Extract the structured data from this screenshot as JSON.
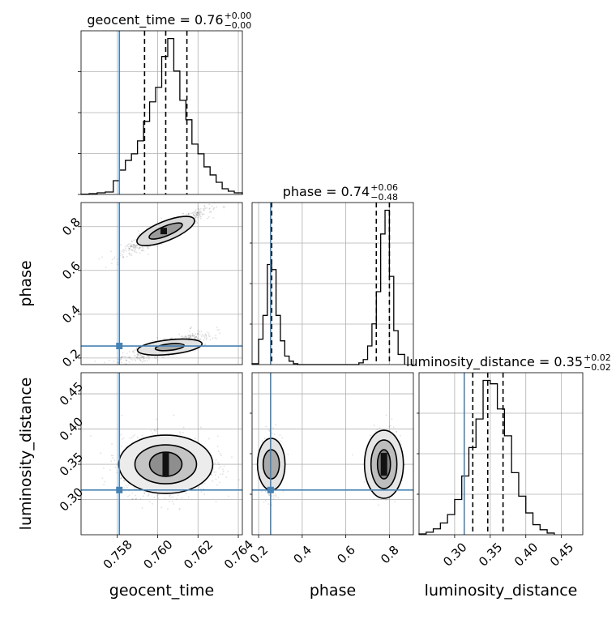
{
  "colors": {
    "truth": "#4682b4",
    "hist": "#000000",
    "grid": "#b0b0b0"
  },
  "chart_data": {
    "type": "corner",
    "parameters": [
      "geocent_time",
      "phase",
      "luminosity_distance"
    ],
    "axis_labels": {
      "x": [
        "geocent_time",
        "phase",
        "luminosity_distance"
      ],
      "y": [
        "phase",
        "luminosity_distance"
      ]
    },
    "titles": [
      {
        "label": "geocent_time = 0.76",
        "sup": "+0.00",
        "sub": "−0.00"
      },
      {
        "label": "phase = 0.74",
        "sup": "+0.06",
        "sub": "−0.48"
      },
      {
        "label": "luminosity_distance = 0.35",
        "sup": "+0.02",
        "sub": "−0.02"
      }
    ],
    "ranges": {
      "geocent_time": [
        0.7562,
        0.7642
      ],
      "phase": [
        0.17,
        0.91
      ],
      "luminosity_distance": [
        0.25,
        0.48
      ]
    },
    "ticks": {
      "geocent_time": {
        "values": [
          0.758,
          0.76,
          0.762,
          0.764
        ],
        "labels": [
          "0.758",
          "0.760",
          "0.762",
          "0.764"
        ]
      },
      "phase": {
        "values": [
          0.2,
          0.4,
          0.6,
          0.8
        ],
        "labels": [
          "0.2",
          "0.4",
          "0.6",
          "0.8"
        ]
      },
      "luminosity_distance": {
        "values": [
          0.3,
          0.35,
          0.4,
          0.45
        ],
        "labels": [
          "0.30",
          "0.35",
          "0.40",
          "0.45"
        ]
      }
    },
    "truths": {
      "geocent_time": 0.7581,
      "phase": 0.255,
      "luminosity_distance": 0.3135
    },
    "quantiles": {
      "geocent_time": [
        0.75935,
        0.7604,
        0.76145
      ],
      "phase": [
        0.26,
        0.74,
        0.8
      ],
      "luminosity_distance": [
        0.3255,
        0.3465,
        0.368
      ]
    },
    "histograms": {
      "geocent_time": {
        "edges": [
          0.7562,
          0.7566,
          0.757,
          0.7574,
          0.7578,
          0.7581,
          0.7584,
          0.7587,
          0.759,
          0.7593,
          0.7596,
          0.7599,
          0.7602,
          0.7605,
          0.7608,
          0.7611,
          0.7614,
          0.7617,
          0.762,
          0.7623,
          0.7626,
          0.7629,
          0.7632,
          0.7635,
          0.7638,
          0.7642
        ],
        "counts": [
          0.2,
          0.5,
          1.0,
          1.5,
          8.5,
          15,
          21,
          25,
          33,
          45,
          57,
          66,
          85,
          96,
          76,
          58,
          46,
          31,
          25,
          17,
          12,
          7.5,
          3.5,
          2,
          1
        ]
      },
      "phase": {
        "edges": [
          0.17,
          0.2,
          0.22,
          0.24,
          0.26,
          0.28,
          0.3,
          0.32,
          0.34,
          0.36,
          0.38,
          0.66,
          0.68,
          0.7,
          0.72,
          0.74,
          0.76,
          0.78,
          0.8,
          0.82,
          0.84,
          0.87
        ],
        "counts": [
          0.5,
          15,
          29,
          59,
          56,
          29,
          14,
          5,
          2,
          0.5,
          0,
          1,
          3,
          11,
          24,
          43,
          77,
          91,
          52,
          20,
          6
        ]
      },
      "luminosity_distance": {
        "edges": [
          0.25,
          0.26,
          0.27,
          0.28,
          0.29,
          0.3,
          0.31,
          0.32,
          0.33,
          0.34,
          0.35,
          0.36,
          0.37,
          0.38,
          0.39,
          0.4,
          0.41,
          0.42,
          0.43,
          0.44
        ],
        "counts": [
          0.5,
          1.5,
          3.5,
          7,
          12,
          21,
          35,
          52,
          69,
          92,
          90,
          75,
          59,
          37,
          23,
          13,
          6,
          3,
          1
        ]
      }
    },
    "grid": true
  }
}
